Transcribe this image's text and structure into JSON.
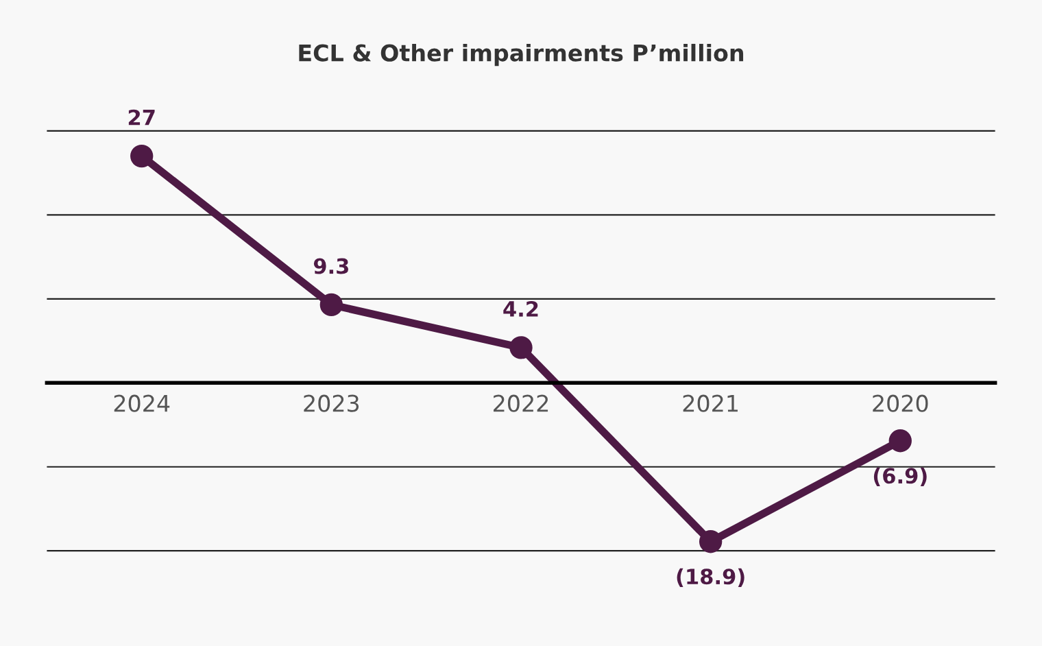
{
  "chart_data": {
    "type": "line",
    "title": "ECL & Other impairments P’million",
    "categories": [
      "2024",
      "2023",
      "2022",
      "2021",
      "2020"
    ],
    "series": [
      {
        "color": "#4e1a45",
        "values": [
          27,
          9.3,
          4.2,
          -18.9,
          -6.9
        ],
        "value_labels": [
          "27",
          "9.3",
          "4.2",
          "(18.9)",
          "(6.9)"
        ]
      }
    ],
    "tick_labels": "x",
    "grid": "y",
    "marker": "circle",
    "line_style": "solid",
    "legend": false
  }
}
